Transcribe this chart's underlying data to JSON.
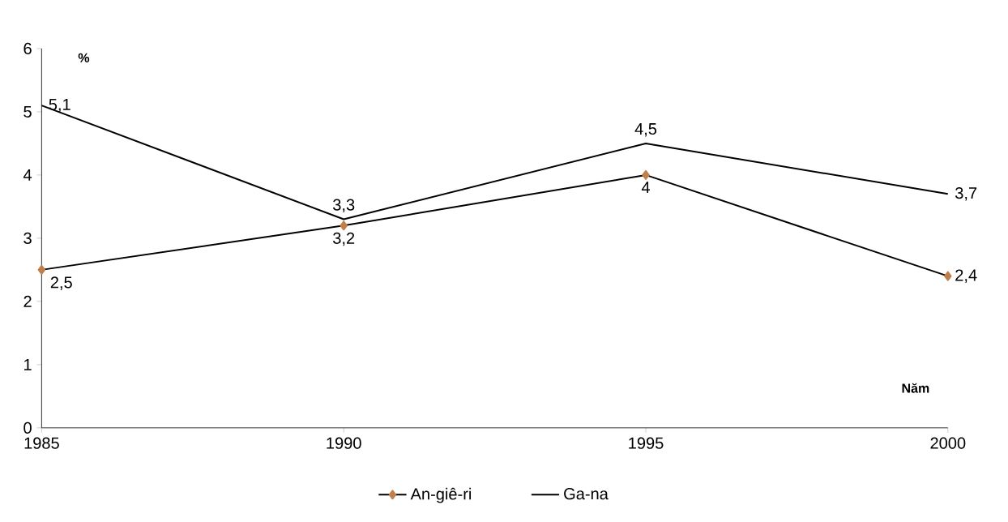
{
  "chart_data": {
    "type": "line",
    "xlabel": "Năm",
    "ylabel": "%",
    "x": [
      1985,
      1990,
      1995,
      2000
    ],
    "series": [
      {
        "name": "An-giê-ri",
        "color": "#c0804d",
        "marker": "diamond",
        "values": [
          2.5,
          3.2,
          4,
          2.4
        ],
        "value_labels": [
          "2,5",
          "3,2",
          "4",
          "2,4"
        ]
      },
      {
        "name": "Ga-na",
        "color": "#000000",
        "marker": "none",
        "values": [
          5.1,
          3.3,
          4.5,
          3.7
        ],
        "value_labels": [
          "5,1",
          "3,3",
          "4,5",
          "3,7"
        ]
      }
    ],
    "xlim": [
      1985,
      2000
    ],
    "xticks": [
      1985,
      1990,
      1995,
      2000
    ],
    "ylim": [
      0,
      6
    ],
    "yticks": [
      0,
      1,
      2,
      3,
      4,
      5,
      6
    ],
    "grid": false,
    "legend": "bottom"
  }
}
